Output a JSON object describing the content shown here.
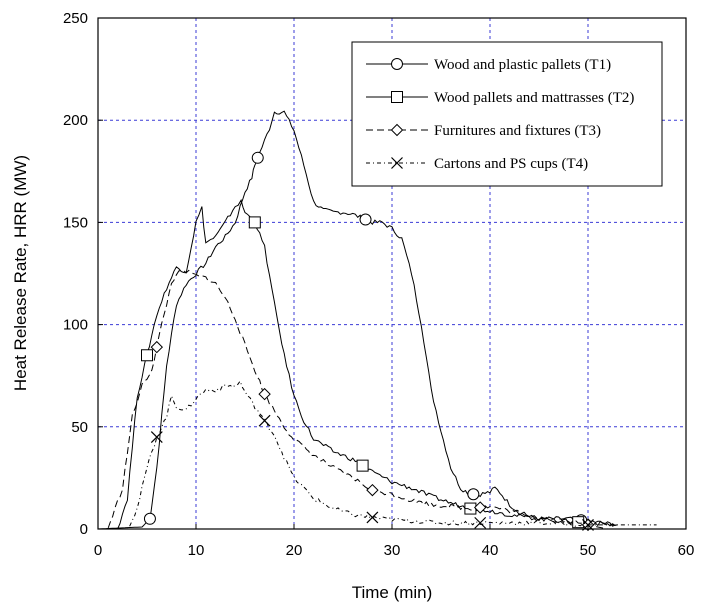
{
  "chart_data": {
    "type": "line",
    "xlabel": "Time (min)",
    "ylabel": "Heat Release Rate, HRR (MW)",
    "xlim": [
      0,
      60
    ],
    "ylim": [
      0,
      250
    ],
    "xticks": [
      "0",
      "10",
      "20",
      "30",
      "40",
      "50",
      "60"
    ],
    "yticks": [
      "0",
      "50",
      "100",
      "150",
      "200",
      "250"
    ],
    "grid": true,
    "legend_position": "top-right",
    "series": [
      {
        "name": "Wood and plastic pallets (T1)",
        "marker": "circle",
        "dash": "solid",
        "x": [
          0,
          4.5,
          5.3,
          6,
          7,
          8,
          9,
          10,
          11,
          12,
          13,
          14,
          15,
          15.7,
          16,
          17,
          17.5,
          18,
          19,
          20,
          21,
          22,
          23,
          24,
          25,
          26,
          27,
          28,
          29,
          30,
          31,
          32,
          33,
          34,
          35,
          36,
          37,
          38,
          39,
          40,
          40.5,
          41,
          42,
          43,
          44,
          45,
          48,
          51.5,
          53
        ],
        "y": [
          0,
          1,
          5,
          30,
          80,
          110,
          120,
          125,
          130,
          138,
          143,
          150,
          165,
          172,
          178,
          190,
          196,
          204,
          204,
          195,
          178,
          160,
          156,
          155,
          155,
          154,
          152,
          150,
          150,
          147,
          142,
          125,
          100,
          68,
          48,
          30,
          20,
          17,
          17,
          18,
          20,
          18,
          12,
          8,
          6,
          5,
          5,
          3,
          2
        ]
      },
      {
        "name": "Wood pallets and mattrasses (T2)",
        "marker": "square",
        "dash": "solid",
        "x": [
          0,
          2,
          3,
          4,
          5,
          6,
          7,
          8,
          9,
          10,
          10.6,
          11,
          12,
          13,
          14,
          14.6,
          15,
          16,
          17,
          18,
          19,
          20,
          21,
          22,
          24,
          26,
          28,
          30,
          32,
          34,
          36.5,
          38,
          40,
          42,
          45,
          47,
          50,
          53
        ],
        "y": [
          0,
          0,
          15,
          65,
          85,
          105,
          118,
          128,
          126,
          150,
          157,
          140,
          143,
          150,
          158,
          160,
          155,
          150,
          138,
          110,
          85,
          65,
          53,
          44,
          38,
          34,
          28,
          23,
          20,
          16,
          12,
          10,
          9,
          7,
          5,
          4,
          3,
          2
        ]
      },
      {
        "name": "Furnitures and fixtures (T3)",
        "marker": "diamond",
        "dash": "dash",
        "x": [
          0,
          1,
          2.5,
          3.5,
          4.5,
          5.5,
          6.5,
          7.5,
          8,
          9,
          10,
          11,
          12,
          13,
          14,
          15,
          16,
          17,
          18,
          19,
          20,
          22,
          24,
          26,
          28,
          30,
          32,
          34,
          36,
          38,
          40,
          42,
          44,
          46,
          48,
          50,
          52
        ],
        "y": [
          0,
          0,
          20,
          55,
          70,
          78,
          100,
          120,
          125,
          126,
          124,
          123,
          120,
          113,
          103,
          90,
          78,
          66,
          58,
          50,
          44,
          36,
          30,
          25,
          19,
          17,
          14,
          12,
          11,
          10,
          11,
          9,
          7,
          5,
          4,
          2,
          0
        ]
      },
      {
        "name": "Cartons and PS cups (T4)",
        "marker": "x",
        "dash": "dashdot",
        "x": [
          0,
          3,
          4,
          5,
          6,
          7,
          7.5,
          8,
          9,
          10,
          11,
          12,
          13,
          14,
          14.5,
          15,
          16,
          17,
          18,
          19,
          20,
          22,
          24,
          26,
          29,
          32,
          35,
          40,
          45,
          50,
          52,
          57
        ],
        "y": [
          0,
          0,
          10,
          30,
          45,
          55,
          65,
          60,
          58,
          64,
          68,
          68,
          70,
          70,
          72,
          67,
          60,
          53,
          46,
          35,
          25,
          15,
          10,
          7,
          5,
          4,
          3,
          3,
          3,
          2,
          2,
          2
        ]
      }
    ]
  }
}
